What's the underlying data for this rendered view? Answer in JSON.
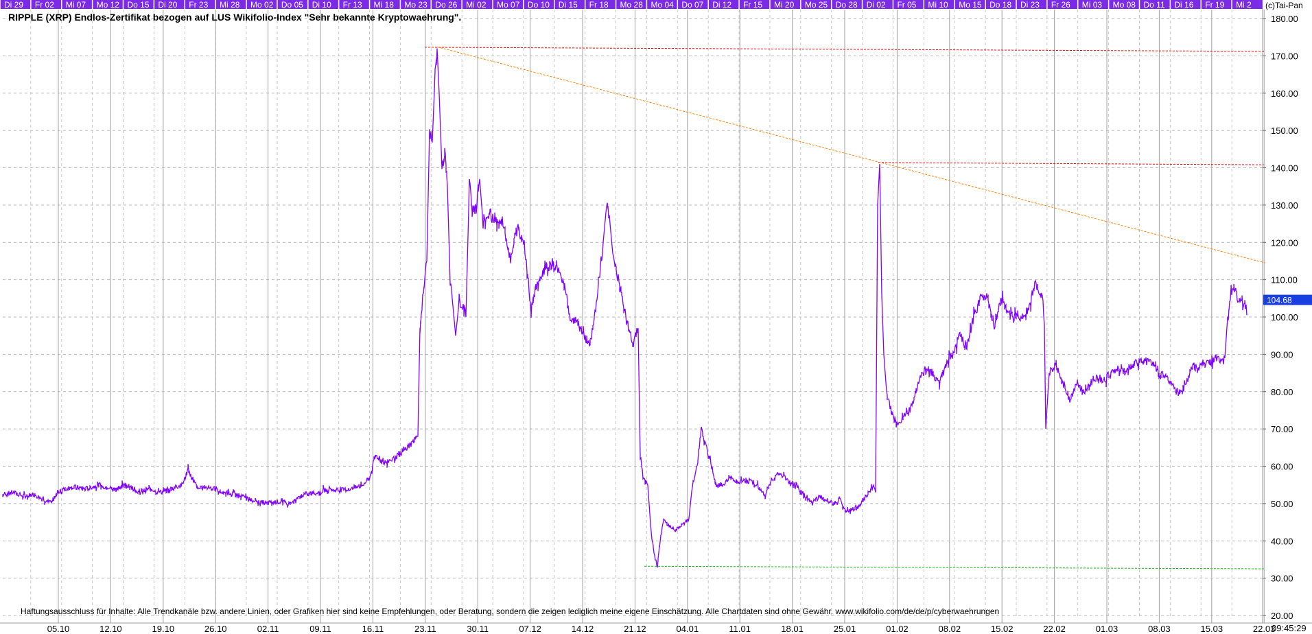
{
  "chart_data": {
    "type": "line",
    "title": "RIPPLE (XRP) Endlos-Zertifikat bezogen auf LUS Wikifolio-Index \"Sehr bekannte Kryptowaehrung\".",
    "copyright": "(c)Tai-Pan",
    "disclaimer": "Haftungsausschluss für Inhalte: Alle Trendkanäle bzw. andere Linien, oder Grafiken hier sind keine Empfehlungen, oder Beratung, sondern die zeigen lediglich meine eigene Einschätzung. Alle Chartdaten sind ohne Gewähr.  www.wikifolio.com/de/de/p/cyberwaehrungen",
    "time_label": "09:45:29",
    "last_value": "104.68",
    "ylim": [
      20,
      180
    ],
    "y_ticks": [
      "180.00",
      "170.00",
      "160.00",
      "150.00",
      "140.00",
      "130.00",
      "120.00",
      "110.00",
      "100.00",
      "90.00",
      "80.00",
      "70.00",
      "60.00",
      "50.00",
      "40.00",
      "30.00",
      "20.00"
    ],
    "top_day_labels": [
      "Di 29",
      "Fr 02",
      "Mi 07",
      "Mo 12",
      "Do 15",
      "Di 20",
      "Fr 23",
      "Mi 28",
      "Mo 02",
      "Do 05",
      "Di 10",
      "Fr 13",
      "Mi 18",
      "Mo 23",
      "Do 26",
      "Mi 02",
      "Mo 07",
      "Do 10",
      "Di 15",
      "Fr 18",
      "Mo 28",
      "Mo 04",
      "Do 07",
      "Di 12",
      "Fr 15",
      "Mi 20",
      "Mo 25",
      "Do 28",
      "Di 02",
      "Fr 05",
      "Mi 10",
      "Mo 15",
      "Do 18",
      "Di 23",
      "Fr 26",
      "Mi 03",
      "Mo 08",
      "Do 11",
      "Di 16",
      "Fr 19",
      "Mi 2"
    ],
    "bottom_date_labels": [
      "05.10",
      "12.10",
      "19.10",
      "26.10",
      "02.11",
      "09.11",
      "16.11",
      "23.11",
      "30.11",
      "07.12",
      "14.12",
      "21.12",
      "04.01",
      "11.01",
      "18.01",
      "25.01",
      "01.02",
      "08.02",
      "15.02",
      "22.02",
      "01.03",
      "08.03",
      "15.03",
      "22.03"
    ],
    "series": [
      {
        "color": "#8000ff",
        "points": [
          [
            0,
            52.5
          ],
          [
            15,
            53
          ],
          [
            30,
            52
          ],
          [
            45,
            52.5
          ],
          [
            60,
            51
          ],
          [
            72,
            50
          ],
          [
            80,
            53
          ],
          [
            100,
            54.5
          ],
          [
            120,
            54
          ],
          [
            140,
            55
          ],
          [
            160,
            54
          ],
          [
            180,
            55
          ],
          [
            200,
            53
          ],
          [
            215,
            54
          ],
          [
            230,
            53
          ],
          [
            245,
            54
          ],
          [
            262,
            55
          ],
          [
            270,
            59
          ],
          [
            275,
            57
          ],
          [
            285,
            54
          ],
          [
            300,
            54.5
          ],
          [
            320,
            53
          ],
          [
            340,
            52.5
          ],
          [
            360,
            51
          ],
          [
            380,
            50
          ],
          [
            400,
            50.5
          ],
          [
            420,
            50
          ],
          [
            440,
            52.5
          ],
          [
            460,
            53
          ],
          [
            475,
            54
          ],
          [
            490,
            53.5
          ],
          [
            510,
            54
          ],
          [
            525,
            55
          ],
          [
            535,
            57
          ],
          [
            543,
            63
          ],
          [
            555,
            61
          ],
          [
            570,
            62
          ],
          [
            590,
            65
          ],
          [
            605,
            68
          ],
          [
            608,
            97
          ],
          [
            612,
            105
          ],
          [
            618,
            115
          ],
          [
            622,
            150
          ],
          [
            626,
            147
          ],
          [
            630,
            165
          ],
          [
            633,
            172
          ],
          [
            636,
            160
          ],
          [
            640,
            140
          ],
          [
            645,
            143
          ],
          [
            648,
            135
          ],
          [
            652,
            110
          ],
          [
            655,
            105
          ],
          [
            660,
            95
          ],
          [
            665,
            104
          ],
          [
            670,
            103
          ],
          [
            675,
            100
          ],
          [
            680,
            136
          ],
          [
            685,
            128
          ],
          [
            690,
            130
          ],
          [
            695,
            137
          ],
          [
            700,
            125
          ],
          [
            710,
            127
          ],
          [
            720,
            126
          ],
          [
            730,
            125
          ],
          [
            740,
            115
          ],
          [
            750,
            124
          ],
          [
            760,
            120
          ],
          [
            770,
            102
          ],
          [
            780,
            110
          ],
          [
            790,
            113
          ],
          [
            800,
            115
          ],
          [
            810,
            112
          ],
          [
            820,
            108
          ],
          [
            825,
            100
          ],
          [
            835,
            99
          ],
          [
            845,
            96
          ],
          [
            855,
            92
          ],
          [
            865,
            103
          ],
          [
            875,
            120
          ],
          [
            880,
            130
          ],
          [
            885,
            125
          ],
          [
            890,
            115
          ],
          [
            900,
            108
          ],
          [
            910,
            98
          ],
          [
            918,
            93
          ],
          [
            922,
            95
          ],
          [
            926,
            97
          ],
          [
            929,
            63
          ],
          [
            933,
            57
          ],
          [
            940,
            55
          ],
          [
            945,
            42
          ],
          [
            950,
            36
          ],
          [
            954,
            33
          ],
          [
            958,
            40
          ],
          [
            963,
            46
          ],
          [
            970,
            44
          ],
          [
            980,
            43
          ],
          [
            990,
            44
          ],
          [
            1000,
            46
          ],
          [
            1005,
            55
          ],
          [
            1012,
            60
          ],
          [
            1018,
            70
          ],
          [
            1022,
            67
          ],
          [
            1030,
            62
          ],
          [
            1040,
            55
          ],
          [
            1050,
            55
          ],
          [
            1060,
            57
          ],
          [
            1070,
            56
          ],
          [
            1080,
            56
          ],
          [
            1090,
            56
          ],
          [
            1100,
            55
          ],
          [
            1110,
            52
          ],
          [
            1120,
            56
          ],
          [
            1130,
            58
          ],
          [
            1140,
            57
          ],
          [
            1150,
            55
          ],
          [
            1160,
            54
          ],
          [
            1170,
            52
          ],
          [
            1180,
            50
          ],
          [
            1190,
            52
          ],
          [
            1200,
            51
          ],
          [
            1210,
            50
          ],
          [
            1220,
            51
          ],
          [
            1230,
            48
          ],
          [
            1240,
            48.5
          ],
          [
            1250,
            50
          ],
          [
            1260,
            52
          ],
          [
            1268,
            55
          ],
          [
            1272,
            53
          ],
          [
            1275,
            130
          ],
          [
            1278,
            141
          ],
          [
            1281,
            106
          ],
          [
            1284,
            90
          ],
          [
            1288,
            80
          ],
          [
            1292,
            77
          ],
          [
            1296,
            74
          ],
          [
            1305,
            71
          ],
          [
            1315,
            74
          ],
          [
            1325,
            76
          ],
          [
            1335,
            83
          ],
          [
            1345,
            86
          ],
          [
            1355,
            85
          ],
          [
            1365,
            82
          ],
          [
            1375,
            88
          ],
          [
            1385,
            90
          ],
          [
            1395,
            95
          ],
          [
            1405,
            92
          ],
          [
            1415,
            100
          ],
          [
            1425,
            105
          ],
          [
            1435,
            106
          ],
          [
            1445,
            97
          ],
          [
            1455,
            105
          ],
          [
            1465,
            101
          ],
          [
            1475,
            100
          ],
          [
            1485,
            100
          ],
          [
            1495,
            102
          ],
          [
            1505,
            109
          ],
          [
            1512,
            106
          ],
          [
            1516,
            104
          ],
          [
            1518,
            98
          ],
          [
            1520,
            70
          ],
          [
            1525,
            85
          ],
          [
            1535,
            87
          ],
          [
            1545,
            82
          ],
          [
            1555,
            78
          ],
          [
            1565,
            82
          ],
          [
            1575,
            80
          ],
          [
            1585,
            82
          ],
          [
            1595,
            84
          ],
          [
            1605,
            83
          ],
          [
            1615,
            85
          ],
          [
            1625,
            86
          ],
          [
            1635,
            85
          ],
          [
            1645,
            87
          ],
          [
            1655,
            88
          ],
          [
            1665,
            88
          ],
          [
            1675,
            88
          ],
          [
            1685,
            85
          ],
          [
            1695,
            84
          ],
          [
            1705,
            82
          ],
          [
            1712,
            80
          ],
          [
            1718,
            80
          ],
          [
            1724,
            82
          ],
          [
            1730,
            85
          ],
          [
            1735,
            87
          ],
          [
            1740,
            86
          ],
          [
            1750,
            88
          ],
          [
            1760,
            88
          ],
          [
            1770,
            89
          ],
          [
            1778,
            88
          ],
          [
            1781,
            89
          ],
          [
            1785,
            100
          ],
          [
            1790,
            107
          ],
          [
            1795,
            108
          ],
          [
            1800,
            105
          ],
          [
            1805,
            105
          ],
          [
            1808,
            102
          ],
          [
            1810,
            104
          ],
          [
            1813,
            100.5
          ]
        ]
      }
    ],
    "trend_lines": [
      {
        "color": "#ff0000",
        "points": [
          [
            615,
            172.3
          ],
          [
            1838,
            171.2
          ]
        ]
      },
      {
        "color": "#ff0000",
        "points": [
          [
            1276,
            141.4
          ],
          [
            1838,
            140.8
          ]
        ]
      },
      {
        "color": "#ff8000",
        "points": [
          [
            633,
            172.4
          ],
          [
            1840,
            114.5
          ]
        ]
      },
      {
        "color": "#00c800",
        "points": [
          [
            935,
            33.2
          ],
          [
            1840,
            32.5
          ]
        ]
      }
    ]
  }
}
